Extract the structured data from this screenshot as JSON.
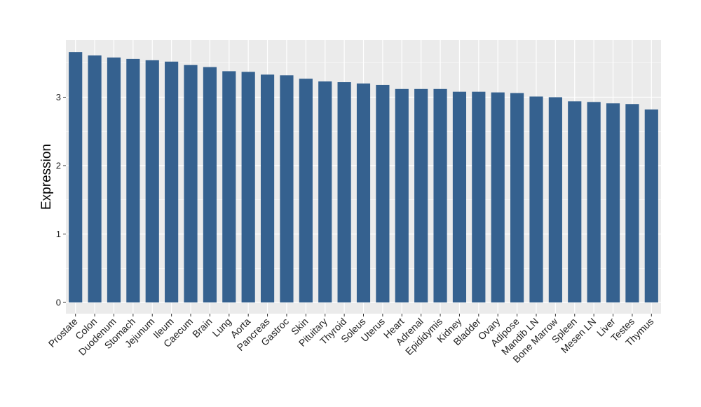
{
  "chart_data": {
    "type": "bar",
    "title": "",
    "xlabel": "",
    "ylabel": "Expression",
    "ylim": [
      0,
      3.8
    ],
    "yticks": [
      0,
      1,
      2,
      3
    ],
    "grid": true,
    "bar_color": "#35618F",
    "panel_color": "#EBEBEB",
    "grid_color": "#FFFFFF",
    "categories": [
      "Prostate",
      "Colon",
      "Duodenum",
      "Stomach",
      "Jejunum",
      "Ileum",
      "Caecum",
      "Brain",
      "Lung",
      "Aorta",
      "Pancreas",
      "Gastroc",
      "Skin",
      "Pituitary",
      "Thyroid",
      "Soleus",
      "Uterus",
      "Heart",
      "Adrenal",
      "Epididymis",
      "Kidney",
      "Bladder",
      "Ovary",
      "Adipose",
      "Mandib LN",
      "Bone Marrow",
      "Spleen",
      "Mesen LN",
      "Liver",
      "Testes",
      "Thymus"
    ],
    "values": [
      3.66,
      3.61,
      3.58,
      3.56,
      3.54,
      3.52,
      3.47,
      3.44,
      3.38,
      3.37,
      3.33,
      3.32,
      3.27,
      3.23,
      3.22,
      3.2,
      3.18,
      3.12,
      3.12,
      3.12,
      3.08,
      3.08,
      3.07,
      3.06,
      3.01,
      3.0,
      2.94,
      2.93,
      2.91,
      2.9,
      2.82
    ]
  }
}
